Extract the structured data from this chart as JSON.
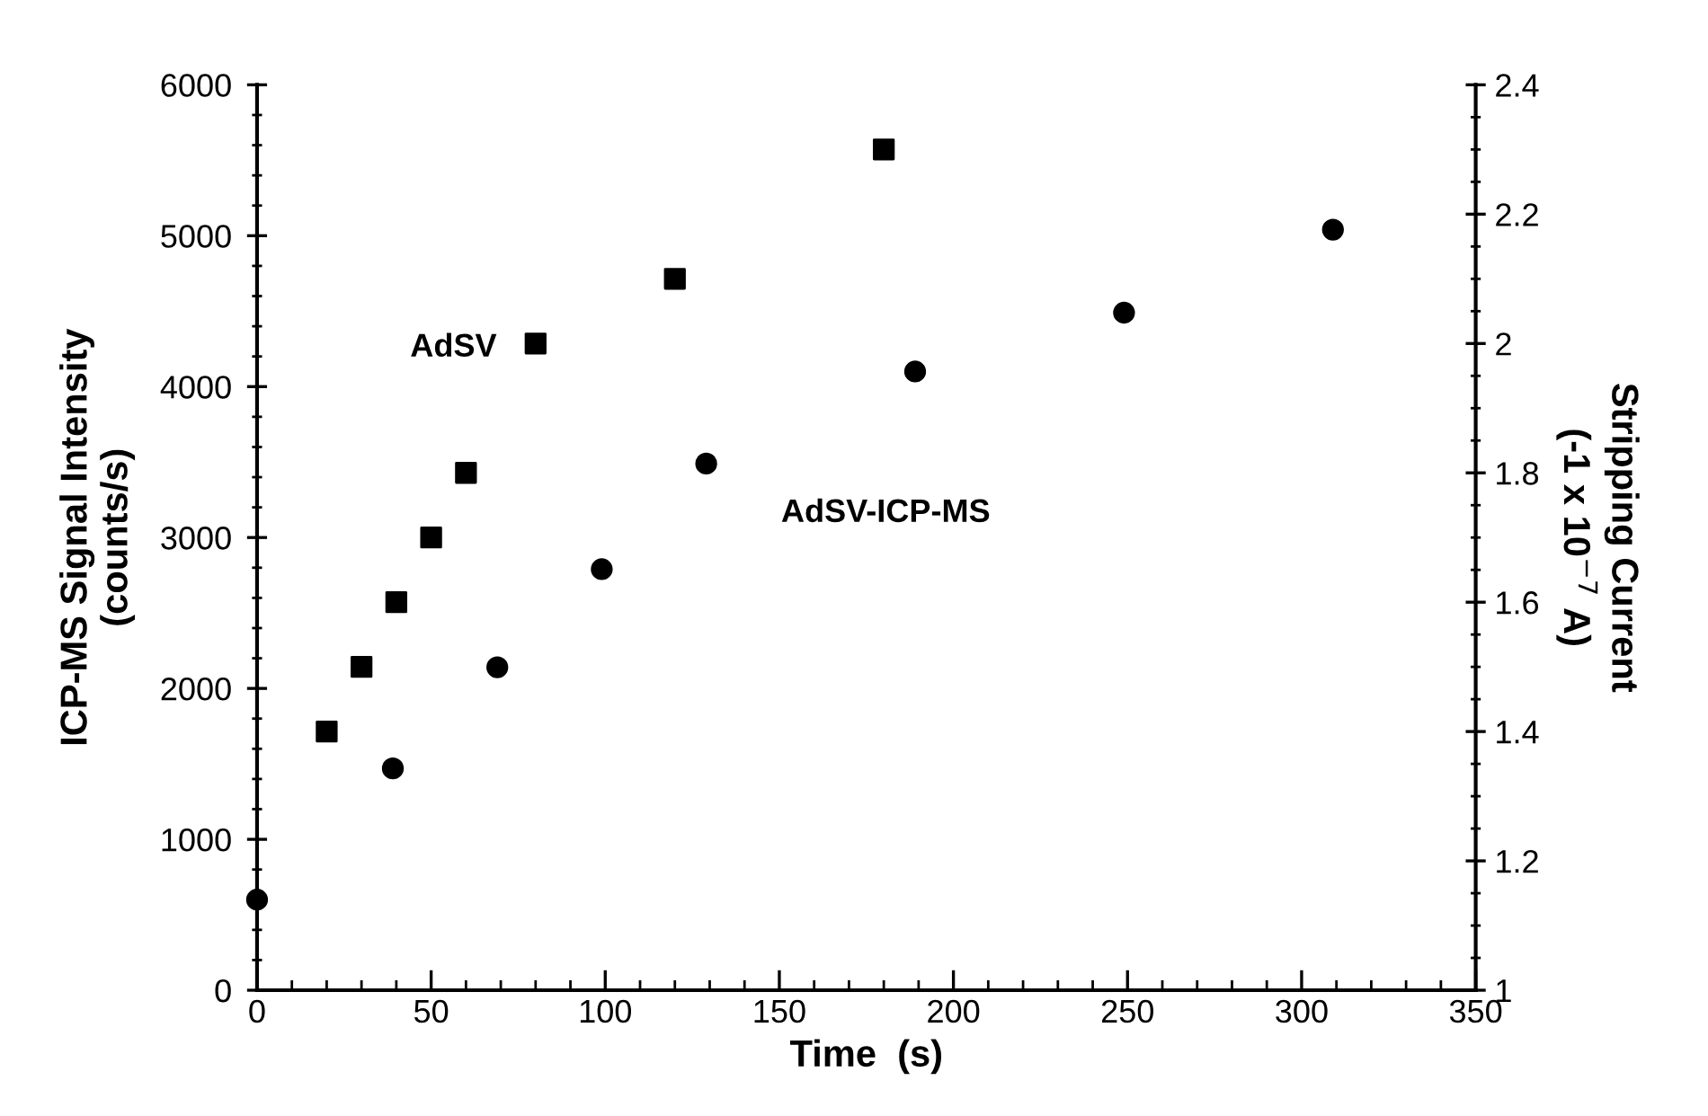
{
  "chart_data": {
    "type": "scatter",
    "xlabel": "Time  (s)",
    "ylabel": "ICP-MS Signal Intensity\n(counts/s)",
    "y2label": "Stripping Current\n(-1 x 10$^{−7}$ A)",
    "xlim": [
      0,
      350
    ],
    "xticks": [
      0,
      50,
      100,
      150,
      200,
      250,
      300,
      350
    ],
    "ylim": [
      0,
      6000
    ],
    "yticks": [
      0,
      1000,
      2000,
      3000,
      4000,
      5000,
      6000
    ],
    "y2lim": [
      1,
      2.4
    ],
    "y2ticks": [
      1,
      1.2,
      1.4,
      1.6,
      1.8,
      2,
      2.2,
      2.4
    ],
    "grid": false,
    "legend": false,
    "series": [
      {
        "name": "AdSV",
        "color": "#000000",
        "marker": "square",
        "axis": "y2",
        "x": [
          20,
          30,
          40,
          50,
          60,
          80,
          120,
          180
        ],
        "values": [
          1.4,
          1.5,
          1.6,
          1.7,
          1.8,
          2.0,
          2.1,
          2.3
        ]
      },
      {
        "name": "AdSV-ICP-MS",
        "color": "#000000",
        "marker": "circle",
        "x": [
          0,
          39,
          69,
          99,
          129,
          189,
          249,
          309
        ],
        "values": [
          600,
          1470,
          2140,
          2790,
          3490,
          4100,
          4490,
          5040
        ]
      }
    ]
  }
}
